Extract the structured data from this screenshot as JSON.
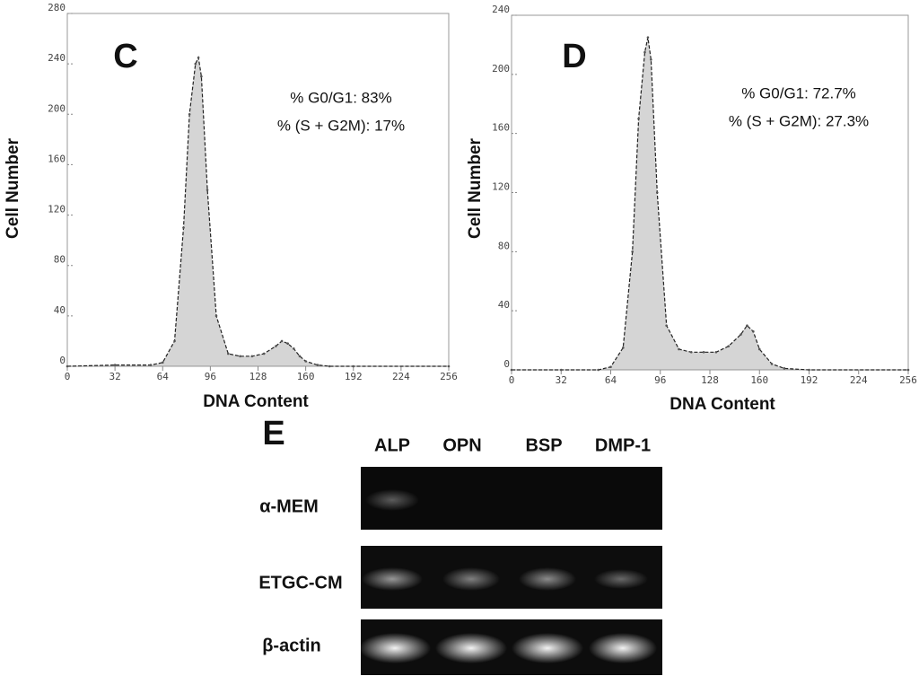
{
  "chart_data": [
    {
      "type": "area",
      "panel": "C",
      "annotations": [
        "% G0/G1: 83%",
        "% (S + G2M): 17%"
      ],
      "y_label": "Cell Number",
      "x_label": "DNA Content",
      "x": [
        0,
        32,
        56,
        64,
        72,
        78,
        82,
        86,
        88,
        90,
        94,
        100,
        108,
        116,
        124,
        132,
        140,
        144,
        148,
        152,
        156,
        160,
        168,
        176,
        192,
        256
      ],
      "values": [
        0,
        1,
        1,
        3,
        20,
        110,
        200,
        240,
        245,
        230,
        140,
        40,
        10,
        8,
        8,
        10,
        16,
        20,
        18,
        14,
        8,
        4,
        1,
        0,
        0,
        0
      ],
      "color": "#888888",
      "xlim": [
        0,
        256
      ],
      "xticks": [
        0,
        32,
        64,
        96,
        128,
        160,
        192,
        224,
        256
      ],
      "ylim": [
        0,
        280
      ],
      "yticks": [
        0,
        40,
        80,
        120,
        160,
        200,
        240,
        280
      ]
    },
    {
      "type": "area",
      "panel": "D",
      "annotations": [
        "% G0/G1: 72.7%",
        "% (S + G2M): 27.3%"
      ],
      "y_label": "Cell Number",
      "x_label": "DNA Content",
      "x": [
        0,
        32,
        56,
        64,
        72,
        78,
        82,
        86,
        88,
        90,
        94,
        100,
        108,
        116,
        124,
        132,
        140,
        148,
        152,
        156,
        160,
        168,
        176,
        192,
        256
      ],
      "values": [
        0,
        0,
        0,
        2,
        15,
        80,
        170,
        215,
        225,
        210,
        120,
        30,
        14,
        12,
        12,
        12,
        16,
        24,
        30,
        26,
        14,
        4,
        1,
        0,
        0
      ],
      "color": "#888888",
      "xlim": [
        0,
        256
      ],
      "xticks": [
        0,
        32,
        64,
        96,
        128,
        160,
        192,
        224,
        256
      ],
      "ylim": [
        0,
        240
      ],
      "yticks": [
        0,
        40,
        80,
        120,
        160,
        200,
        240
      ]
    }
  ],
  "gel": {
    "panel": "E",
    "columns": [
      "ALP",
      "OPN",
      "BSP",
      "DMP-1"
    ],
    "rows": [
      "α-MEM",
      "ETGC-CM",
      "β-actin"
    ]
  }
}
